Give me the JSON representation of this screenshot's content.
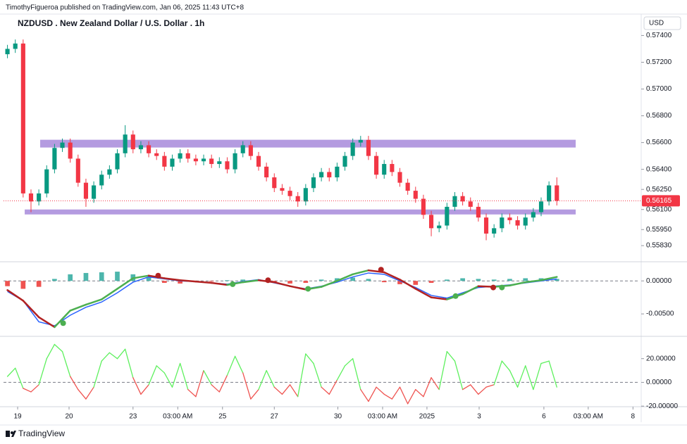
{
  "header": {
    "text": "TimothyFigueroa published on TradingView.com, Jan 06, 2025 11:43 UTC+8"
  },
  "footer": {
    "brand": "TradingView"
  },
  "chart_data": [
    {
      "type": "candlestick",
      "title": "NZDUSD . New Zealand Dollar / U.S. Dollar . 1h",
      "currency": "USD",
      "x": [
        0,
        1,
        2,
        3,
        4,
        5,
        6,
        7,
        8,
        9,
        10,
        11,
        12,
        13,
        14,
        15,
        16,
        17,
        18,
        19,
        20,
        21,
        22,
        23,
        24,
        25,
        26,
        27,
        28,
        29,
        30,
        31,
        32,
        33,
        34,
        35,
        36,
        37,
        38,
        39,
        40,
        41,
        42,
        43,
        44,
        45,
        46,
        47,
        48,
        49,
        50,
        51,
        52,
        53,
        54,
        55,
        56,
        57,
        58,
        59,
        60,
        61,
        62,
        63,
        64,
        65,
        66,
        67,
        68,
        69,
        70
      ],
      "open": [
        0.5726,
        0.573,
        0.5734,
        0.5622,
        0.5616,
        0.5622,
        0.564,
        0.5656,
        0.566,
        0.5648,
        0.563,
        0.5618,
        0.5628,
        0.5636,
        0.564,
        0.5652,
        0.5666,
        0.5655,
        0.5658,
        0.5652,
        0.565,
        0.5642,
        0.5648,
        0.5652,
        0.5648,
        0.5646,
        0.5648,
        0.5644,
        0.5646,
        0.564,
        0.5652,
        0.5658,
        0.565,
        0.5642,
        0.5634,
        0.5626,
        0.5624,
        0.562,
        0.5616,
        0.5626,
        0.5634,
        0.5638,
        0.5634,
        0.5642,
        0.565,
        0.566,
        0.5662,
        0.565,
        0.5636,
        0.5644,
        0.5638,
        0.563,
        0.5624,
        0.5618,
        0.5606,
        0.5596,
        0.5598,
        0.5612,
        0.562,
        0.5616,
        0.5612,
        0.5604,
        0.5592,
        0.5596,
        0.5604,
        0.5602,
        0.5598,
        0.5604,
        0.5608,
        0.5616,
        0.5628
      ],
      "high": [
        0.5733,
        0.5737,
        0.5737,
        0.5625,
        0.5625,
        0.5643,
        0.5659,
        0.5663,
        0.5663,
        0.5651,
        0.5633,
        0.5631,
        0.5639,
        0.5643,
        0.5655,
        0.5673,
        0.5669,
        0.5661,
        0.5661,
        0.5655,
        0.5653,
        0.5651,
        0.5655,
        0.5655,
        0.5651,
        0.5651,
        0.5651,
        0.5649,
        0.5649,
        0.5655,
        0.5661,
        0.5661,
        0.5653,
        0.5645,
        0.5637,
        0.5629,
        0.5627,
        0.5623,
        0.5629,
        0.5637,
        0.5641,
        0.5641,
        0.5645,
        0.5653,
        0.5663,
        0.5665,
        0.5665,
        0.5653,
        0.5647,
        0.5647,
        0.5641,
        0.5633,
        0.5627,
        0.5621,
        0.5609,
        0.5601,
        0.5615,
        0.5623,
        0.5623,
        0.5619,
        0.5615,
        0.5607,
        0.5599,
        0.5607,
        0.5607,
        0.5605,
        0.5607,
        0.5611,
        0.5619,
        0.5631,
        0.5634
      ],
      "low": [
        0.5723,
        0.5727,
        0.5619,
        0.5608,
        0.5613,
        0.5619,
        0.5637,
        0.5653,
        0.5645,
        0.5627,
        0.5612,
        0.5615,
        0.5625,
        0.5633,
        0.5637,
        0.5649,
        0.5652,
        0.5652,
        0.5649,
        0.5647,
        0.5639,
        0.5639,
        0.5645,
        0.5645,
        0.5643,
        0.5643,
        0.5641,
        0.5641,
        0.5637,
        0.5637,
        0.5649,
        0.5647,
        0.5639,
        0.5631,
        0.5623,
        0.5621,
        0.5617,
        0.5612,
        0.5613,
        0.5623,
        0.5631,
        0.5631,
        0.5631,
        0.5639,
        0.5647,
        0.5657,
        0.5647,
        0.5633,
        0.5633,
        0.5635,
        0.5627,
        0.5621,
        0.5615,
        0.5603,
        0.559,
        0.5593,
        0.5595,
        0.5609,
        0.5613,
        0.5609,
        0.5601,
        0.5587,
        0.5589,
        0.5593,
        0.5599,
        0.5595,
        0.5595,
        0.5601,
        0.5605,
        0.5613,
        0.5613
      ],
      "close": [
        0.573,
        0.5734,
        0.5622,
        0.5616,
        0.5622,
        0.564,
        0.5656,
        0.566,
        0.5648,
        0.563,
        0.5618,
        0.5628,
        0.5636,
        0.564,
        0.5652,
        0.5666,
        0.5655,
        0.5658,
        0.5652,
        0.565,
        0.5642,
        0.5648,
        0.5652,
        0.5648,
        0.5646,
        0.5648,
        0.5644,
        0.5646,
        0.564,
        0.5652,
        0.5658,
        0.565,
        0.5642,
        0.5634,
        0.5626,
        0.5624,
        0.562,
        0.5616,
        0.5626,
        0.5634,
        0.5638,
        0.5634,
        0.5642,
        0.565,
        0.566,
        0.5662,
        0.565,
        0.5636,
        0.5644,
        0.5638,
        0.563,
        0.5624,
        0.5618,
        0.5606,
        0.5596,
        0.5598,
        0.5612,
        0.562,
        0.5616,
        0.5612,
        0.5604,
        0.5592,
        0.5596,
        0.5604,
        0.5602,
        0.5598,
        0.5604,
        0.5608,
        0.5616,
        0.5628,
        0.56165
      ],
      "up_color": "#089981",
      "down_color": "#f23645",
      "last_price_color": "#f23645",
      "ylim": [
        0.5572,
        0.5756
      ],
      "yticks": [
        {
          "value": 0.574,
          "label": "0.57400"
        },
        {
          "value": 0.572,
          "label": "0.57200"
        },
        {
          "value": 0.57,
          "label": "0.57000"
        },
        {
          "value": 0.568,
          "label": "0.56800"
        },
        {
          "value": 0.566,
          "label": "0.56600"
        },
        {
          "value": 0.564,
          "label": "0.56400"
        },
        {
          "value": 0.5625,
          "label": "0.56250"
        },
        {
          "value": 0.561,
          "label": "0.56100"
        },
        {
          "value": 0.5595,
          "label": "0.55950"
        },
        {
          "value": 0.5583,
          "label": "0.55830"
        }
      ],
      "zones": [
        {
          "x0": 4.17,
          "x1": 72.4,
          "top": 0.56621,
          "bottom": 0.56563
        },
        {
          "x0": 2.2,
          "x1": 72.4,
          "top": 0.561,
          "bottom": 0.56063
        }
      ],
      "zone_color": "#b49be0"
    },
    {
      "type": "line",
      "x": [
        0,
        2,
        4,
        6,
        8,
        10,
        12,
        14,
        16,
        18,
        20,
        22,
        24,
        26,
        28,
        30,
        32,
        34,
        36,
        38,
        40,
        42,
        44,
        46,
        48,
        50,
        52,
        54,
        56,
        58,
        60,
        62,
        64,
        66,
        68,
        70
      ],
      "series": [
        {
          "color": "#2962ff",
          "values": [
            -0.0016,
            -0.003,
            -0.0062,
            -0.0068,
            -0.0052,
            -0.004,
            -0.0032,
            -0.0018,
            -0.0002,
            0.0006,
            0.0003,
            0.0,
            -0.0001,
            -0.0003,
            -0.0005,
            -0.0001,
            0.0002,
            -0.0003,
            -0.0008,
            -0.0012,
            -0.0008,
            -0.0002,
            0.0006,
            0.0012,
            0.001,
            0.0,
            -0.001,
            -0.0022,
            -0.0026,
            -0.0018,
            -0.001,
            -0.0008,
            -0.0006,
            -0.0003,
            0.0,
            0.0003
          ]
        },
        {
          "rising_color": "#4caf50",
          "falling_color": "#b22222",
          "values": [
            -0.0014,
            -0.003,
            -0.0055,
            -0.007,
            -0.0045,
            -0.0036,
            -0.0028,
            -0.0012,
            0.0004,
            0.0008,
            0.0004,
            0.0001,
            -0.0001,
            -0.0003,
            -0.0006,
            -0.0002,
            0.0001,
            -0.0002,
            -0.0008,
            -0.0013,
            -0.0009,
            0.0,
            0.001,
            0.0016,
            0.0013,
            0.0002,
            -0.0012,
            -0.0025,
            -0.0028,
            -0.002,
            -0.0008,
            -0.0009,
            -0.0007,
            -0.0002,
            0.0001,
            0.0006
          ]
        }
      ],
      "histogram": {
        "pos_color": "#4db6ac",
        "neg_color": "#ef5350",
        "values": [
          -0.0008,
          -0.0012,
          -0.0009,
          0.0003,
          0.001,
          0.0012,
          0.0013,
          0.0014,
          0.001,
          0.0005,
          -0.0003,
          -0.0004,
          -0.0002,
          -0.0001,
          0.0001,
          0.0002,
          0.0001,
          -0.0002,
          -0.0004,
          -0.0003,
          0.0002,
          0.0004,
          0.0005,
          0.0003,
          -0.0002,
          -0.0005,
          -0.0006,
          -0.0003,
          0.0002,
          0.0004,
          0.0003,
          0.0002,
          0.0003,
          0.0004,
          0.0004,
          0.0003
        ]
      },
      "markers": [
        {
          "x": 7.1,
          "value": -0.0064,
          "color": "#4caf50"
        },
        {
          "x": 19.2,
          "value": 0.0008,
          "color": "#b22222"
        },
        {
          "x": 28.7,
          "value": -0.0005,
          "color": "#4caf50"
        },
        {
          "x": 33.2,
          "value": 0.0001,
          "color": "#b22222"
        },
        {
          "x": 38.3,
          "value": -0.0012,
          "color": "#4caf50"
        },
        {
          "x": 47.6,
          "value": 0.0017,
          "color": "#b22222"
        },
        {
          "x": 57.1,
          "value": -0.0023,
          "color": "#4caf50"
        },
        {
          "x": 61.9,
          "value": -0.001,
          "color": "#b22222"
        },
        {
          "x": 63,
          "value": -0.001,
          "color": "#4caf50"
        }
      ],
      "ylim": [
        -0.0084,
        0.0029
      ],
      "yticks": [
        {
          "value": 0,
          "label": "0.00000"
        },
        {
          "value": -0.005,
          "label": "-0.00500"
        }
      ],
      "zero_line": true
    },
    {
      "type": "line",
      "x": [
        0,
        1,
        2,
        3,
        4,
        5,
        6,
        7,
        8,
        9,
        10,
        11,
        12,
        13,
        14,
        15,
        16,
        17,
        18,
        19,
        20,
        21,
        22,
        23,
        24,
        25,
        26,
        27,
        28,
        29,
        30,
        31,
        32,
        33,
        34,
        35,
        36,
        37,
        38,
        39,
        40,
        41,
        42,
        43,
        44,
        45,
        46,
        47,
        48,
        49,
        50,
        51,
        52,
        53,
        54,
        55,
        56,
        57,
        58,
        59,
        60,
        61,
        62,
        63,
        64,
        65,
        66,
        67,
        68,
        69,
        70
      ],
      "series": [
        {
          "pos_color": "#5ef05e",
          "neg_color": "#ef5350",
          "values": [
            5,
            12,
            -5,
            -8,
            -2,
            20,
            32,
            26,
            5,
            -6,
            -14,
            -4,
            18,
            25,
            20,
            28,
            4,
            -10,
            -2,
            14,
            8,
            -4,
            16,
            -6,
            -12,
            10,
            -2,
            -8,
            6,
            22,
            8,
            -14,
            -6,
            10,
            -4,
            -10,
            -2,
            -12,
            24,
            16,
            -4,
            -10,
            2,
            14,
            20,
            -6,
            -16,
            -4,
            -10,
            -14,
            -4,
            -18,
            -6,
            -12,
            4,
            -6,
            26,
            18,
            -6,
            -2,
            -10,
            -4,
            -2,
            18,
            10,
            -4,
            14,
            -6,
            16,
            18,
            -4
          ]
        }
      ],
      "ylim": [
        -20.5,
        38.8
      ],
      "yticks": [
        {
          "value": 20,
          "label": "20.00000"
        },
        {
          "value": 0,
          "label": "0.00000"
        },
        {
          "value": -20,
          "label": "-20.00000"
        }
      ],
      "zero_line": true,
      "xlim": [
        -0.5,
        80.3
      ],
      "xticks": [
        {
          "value": 1.3,
          "label": "19"
        },
        {
          "value": 7.85,
          "label": "20"
        },
        {
          "value": 16.0,
          "label": "23"
        },
        {
          "value": 21.7,
          "label": "03:00 AM"
        },
        {
          "value": 27.4,
          "label": "25"
        },
        {
          "value": 34.0,
          "label": "27"
        },
        {
          "value": 42.1,
          "label": "30"
        },
        {
          "value": 47.8,
          "label": "03:00 AM"
        },
        {
          "value": 53.45,
          "label": "2025"
        },
        {
          "value": 60.1,
          "label": "3"
        },
        {
          "value": 68.35,
          "label": "6"
        },
        {
          "value": 74.0,
          "label": "03:00 AM"
        },
        {
          "value": 79.7,
          "label": "8"
        }
      ]
    }
  ]
}
